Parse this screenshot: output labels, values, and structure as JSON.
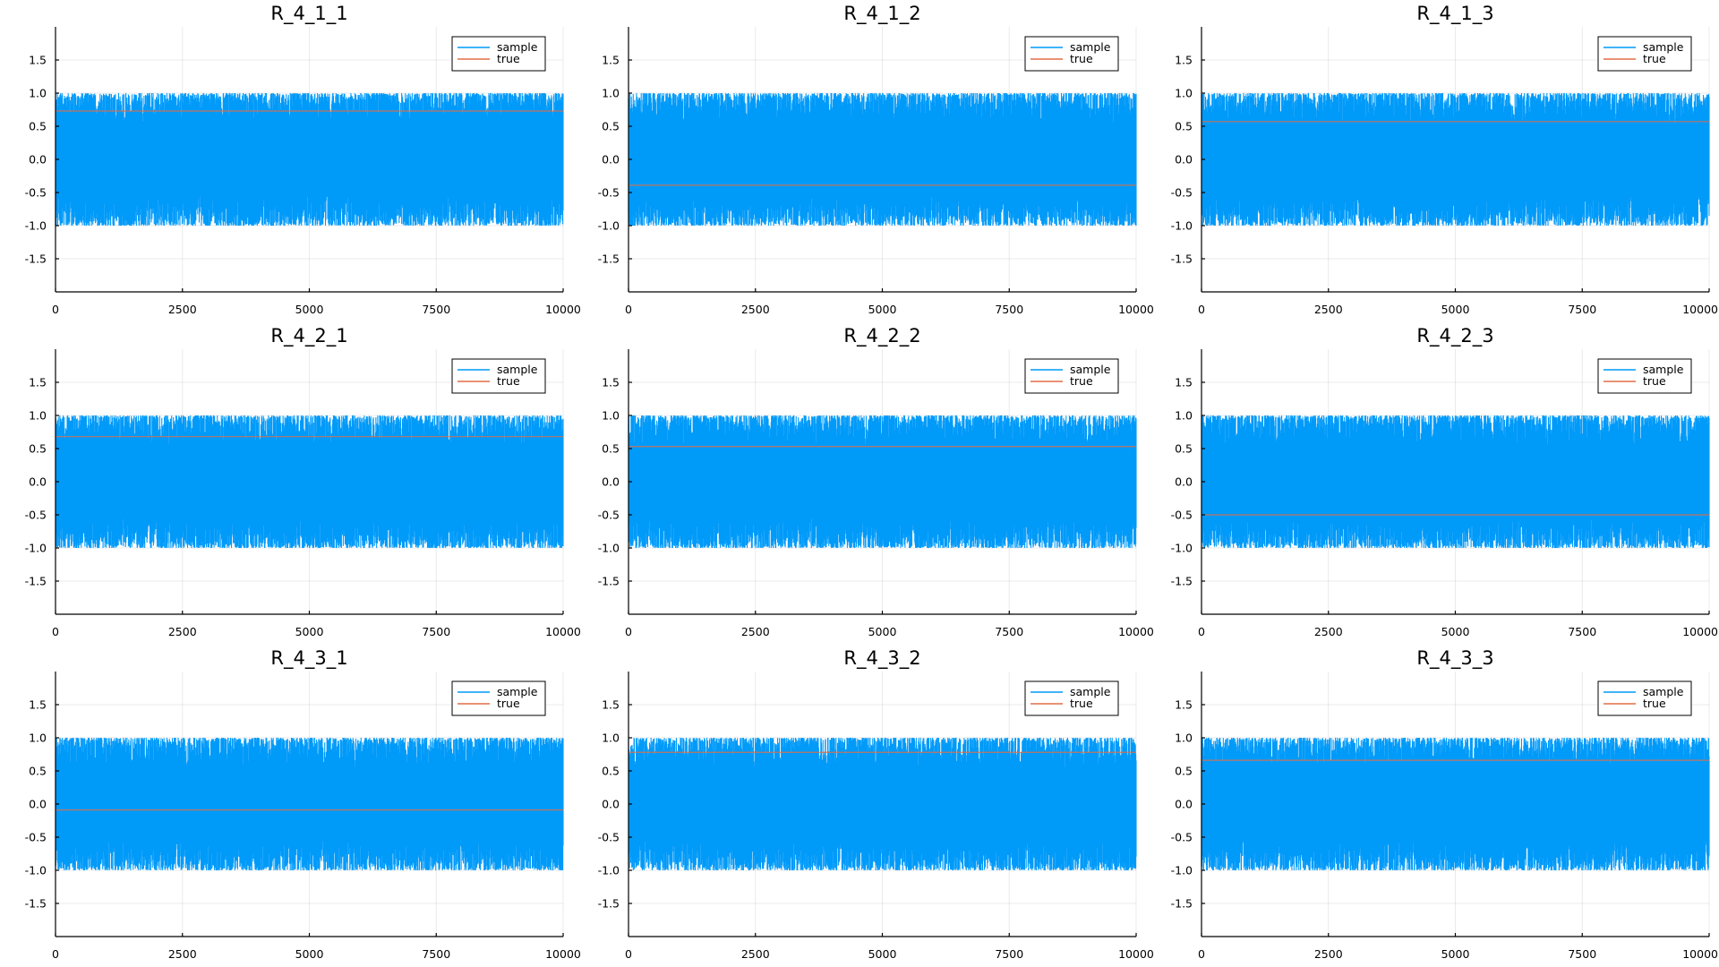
{
  "chart_data": [
    {
      "type": "line",
      "title": "R_4_1_1",
      "true_value": 0.73,
      "xlim": [
        0,
        10000
      ],
      "ylim": [
        -2,
        2
      ],
      "series": [
        {
          "name": "sample",
          "kind": "trace",
          "range": [
            -1,
            1
          ]
        },
        {
          "name": "true",
          "kind": "hline"
        }
      ]
    },
    {
      "type": "line",
      "title": "R_4_1_2",
      "true_value": -0.39,
      "xlim": [
        0,
        10000
      ],
      "ylim": [
        -2,
        2
      ],
      "series": [
        {
          "name": "sample",
          "kind": "trace",
          "range": [
            -1,
            1
          ]
        },
        {
          "name": "true",
          "kind": "hline"
        }
      ]
    },
    {
      "type": "line",
      "title": "R_4_1_3",
      "true_value": 0.57,
      "xlim": [
        0,
        10000
      ],
      "ylim": [
        -2,
        2
      ],
      "series": [
        {
          "name": "sample",
          "kind": "trace",
          "range": [
            -1,
            1
          ]
        },
        {
          "name": "true",
          "kind": "hline"
        }
      ]
    },
    {
      "type": "line",
      "title": "R_4_2_1",
      "true_value": 0.68,
      "xlim": [
        0,
        10000
      ],
      "ylim": [
        -2,
        2
      ],
      "series": [
        {
          "name": "sample",
          "kind": "trace",
          "range": [
            -1,
            1
          ]
        },
        {
          "name": "true",
          "kind": "hline"
        }
      ]
    },
    {
      "type": "line",
      "title": "R_4_2_2",
      "true_value": 0.53,
      "xlim": [
        0,
        10000
      ],
      "ylim": [
        -2,
        2
      ],
      "series": [
        {
          "name": "sample",
          "kind": "trace",
          "range": [
            -1,
            1
          ]
        },
        {
          "name": "true",
          "kind": "hline"
        }
      ]
    },
    {
      "type": "line",
      "title": "R_4_2_3",
      "true_value": -0.5,
      "xlim": [
        0,
        10000
      ],
      "ylim": [
        -2,
        2
      ],
      "series": [
        {
          "name": "sample",
          "kind": "trace",
          "range": [
            -1,
            1
          ]
        },
        {
          "name": "true",
          "kind": "hline"
        }
      ]
    },
    {
      "type": "line",
      "title": "R_4_3_1",
      "true_value": -0.09,
      "xlim": [
        0,
        10000
      ],
      "ylim": [
        -2,
        2
      ],
      "series": [
        {
          "name": "sample",
          "kind": "trace",
          "range": [
            -1,
            1
          ]
        },
        {
          "name": "true",
          "kind": "hline"
        }
      ]
    },
    {
      "type": "line",
      "title": "R_4_3_2",
      "true_value": 0.78,
      "xlim": [
        0,
        10000
      ],
      "ylim": [
        -2,
        2
      ],
      "series": [
        {
          "name": "sample",
          "kind": "trace",
          "range": [
            -1,
            1
          ]
        },
        {
          "name": "true",
          "kind": "hline"
        }
      ]
    },
    {
      "type": "line",
      "title": "R_4_3_3",
      "true_value": 0.66,
      "xlim": [
        0,
        10000
      ],
      "ylim": [
        -2,
        2
      ],
      "series": [
        {
          "name": "sample",
          "kind": "trace",
          "range": [
            -1,
            1
          ]
        },
        {
          "name": "true",
          "kind": "hline"
        }
      ]
    }
  ],
  "x_ticks": [
    {
      "value": 0,
      "label": "0"
    },
    {
      "value": 2500,
      "label": "2500"
    },
    {
      "value": 5000,
      "label": "5000"
    },
    {
      "value": 7500,
      "label": "7500"
    },
    {
      "value": 10000,
      "label": "10000"
    }
  ],
  "y_ticks": [
    {
      "value": 1.5,
      "label": "1.5"
    },
    {
      "value": 1.0,
      "label": "1.0"
    },
    {
      "value": 0.5,
      "label": "0.5"
    },
    {
      "value": 0.0,
      "label": "0.0"
    },
    {
      "value": -0.5,
      "label": "-0.5"
    },
    {
      "value": -1.0,
      "label": "-1.0"
    },
    {
      "value": -1.5,
      "label": "-1.5"
    }
  ],
  "legend": {
    "position": "top-right",
    "entries": [
      "sample",
      "true"
    ]
  },
  "colors": {
    "sample": "#009af9",
    "true": "#e26f46"
  },
  "grid": true
}
